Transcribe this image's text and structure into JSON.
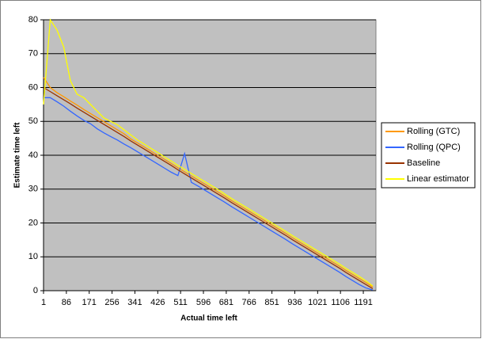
{
  "chart_data": {
    "type": "line",
    "xlabel": "Actual time left",
    "ylabel": "Estimate time left",
    "x": [
      1,
      26,
      51,
      76,
      101,
      126,
      151,
      176,
      201,
      226,
      251,
      276,
      301,
      326,
      351,
      376,
      401,
      426,
      451,
      476,
      501,
      526,
      551,
      576,
      601,
      626,
      651,
      676,
      701,
      726,
      751,
      776,
      801,
      826,
      851,
      876,
      901,
      926,
      951,
      976,
      1001,
      1026,
      1051,
      1076,
      1101,
      1126,
      1151,
      1176,
      1201,
      1226
    ],
    "xlim": [
      1,
      1238
    ],
    "xticks": [
      1,
      86,
      171,
      256,
      341,
      426,
      511,
      596,
      681,
      766,
      851,
      936,
      1021,
      1106,
      1191
    ],
    "ylim": [
      0,
      80
    ],
    "yticks": [
      0,
      10,
      20,
      30,
      40,
      50,
      60,
      70,
      80
    ],
    "grid": true,
    "legend": "right",
    "series": [
      {
        "name": "Rolling (GTC)",
        "color": "#ff9900",
        "values": [
          63,
          60,
          58.5,
          57.3,
          56,
          54.8,
          53.5,
          52.3,
          51.1,
          49.9,
          48.7,
          47.5,
          46.3,
          44.8,
          43.6,
          42.4,
          41.2,
          40,
          38.8,
          37.6,
          36.3,
          35.1,
          33.9,
          32.7,
          31.5,
          30.3,
          29.1,
          27.9,
          26.6,
          25.4,
          24.2,
          23,
          21.8,
          20.6,
          19.4,
          18.2,
          17,
          15.7,
          14.5,
          13.3,
          12.1,
          10.9,
          9.7,
          8.5,
          7.3,
          6,
          4.8,
          3.6,
          2.4,
          1.1
        ]
      },
      {
        "name": "Rolling (QPC)",
        "color": "#3366ff",
        "values": [
          57,
          57,
          55.8,
          54.5,
          53,
          51.6,
          50.3,
          49.3,
          47.8,
          46.6,
          45.5,
          44.5,
          43.3,
          42.2,
          41,
          39.8,
          38.6,
          37.4,
          36.2,
          35,
          34,
          40.5,
          32,
          30.9,
          29.7,
          28.5,
          27.3,
          26.1,
          24.8,
          23.6,
          22.4,
          21.2,
          20,
          18.8,
          17.6,
          16.4,
          15.2,
          13.9,
          12.7,
          11.5,
          10.3,
          9.1,
          7.9,
          6.7,
          5.5,
          4.2,
          3,
          1.8,
          0.8,
          0.2
        ]
      },
      {
        "name": "Baseline",
        "color": "#993300",
        "values": [
          60,
          58.8,
          57.6,
          56.4,
          55.2,
          53.9,
          52.7,
          51.5,
          50.3,
          49.1,
          47.9,
          46.7,
          45.5,
          44.2,
          43,
          41.8,
          40.6,
          39.4,
          38.2,
          37,
          35.7,
          34.5,
          33.3,
          32.1,
          30.9,
          29.7,
          28.5,
          27.3,
          26,
          24.8,
          23.6,
          22.4,
          21.2,
          20,
          18.8,
          17.6,
          16.4,
          15.1,
          13.9,
          12.7,
          11.5,
          10.3,
          9.1,
          7.9,
          6.7,
          5.4,
          4.2,
          3,
          1.8,
          0.6
        ]
      },
      {
        "name": "Linear estimator",
        "color": "#ffff00",
        "values": [
          55,
          80,
          77,
          72,
          62,
          58,
          57,
          55,
          53,
          51,
          50,
          49,
          47.5,
          46,
          44.5,
          43.3,
          42,
          40.8,
          39.5,
          38.3,
          37,
          35.8,
          34.6,
          33.4,
          32.2,
          31,
          29.8,
          28.5,
          27.2,
          26,
          24.8,
          23.6,
          22.4,
          21.2,
          20,
          18.8,
          17.6,
          16.3,
          15.1,
          13.9,
          12.7,
          11.5,
          10.3,
          9.1,
          7.9,
          6.6,
          5.4,
          4.2,
          2.9,
          1.4
        ]
      }
    ]
  }
}
